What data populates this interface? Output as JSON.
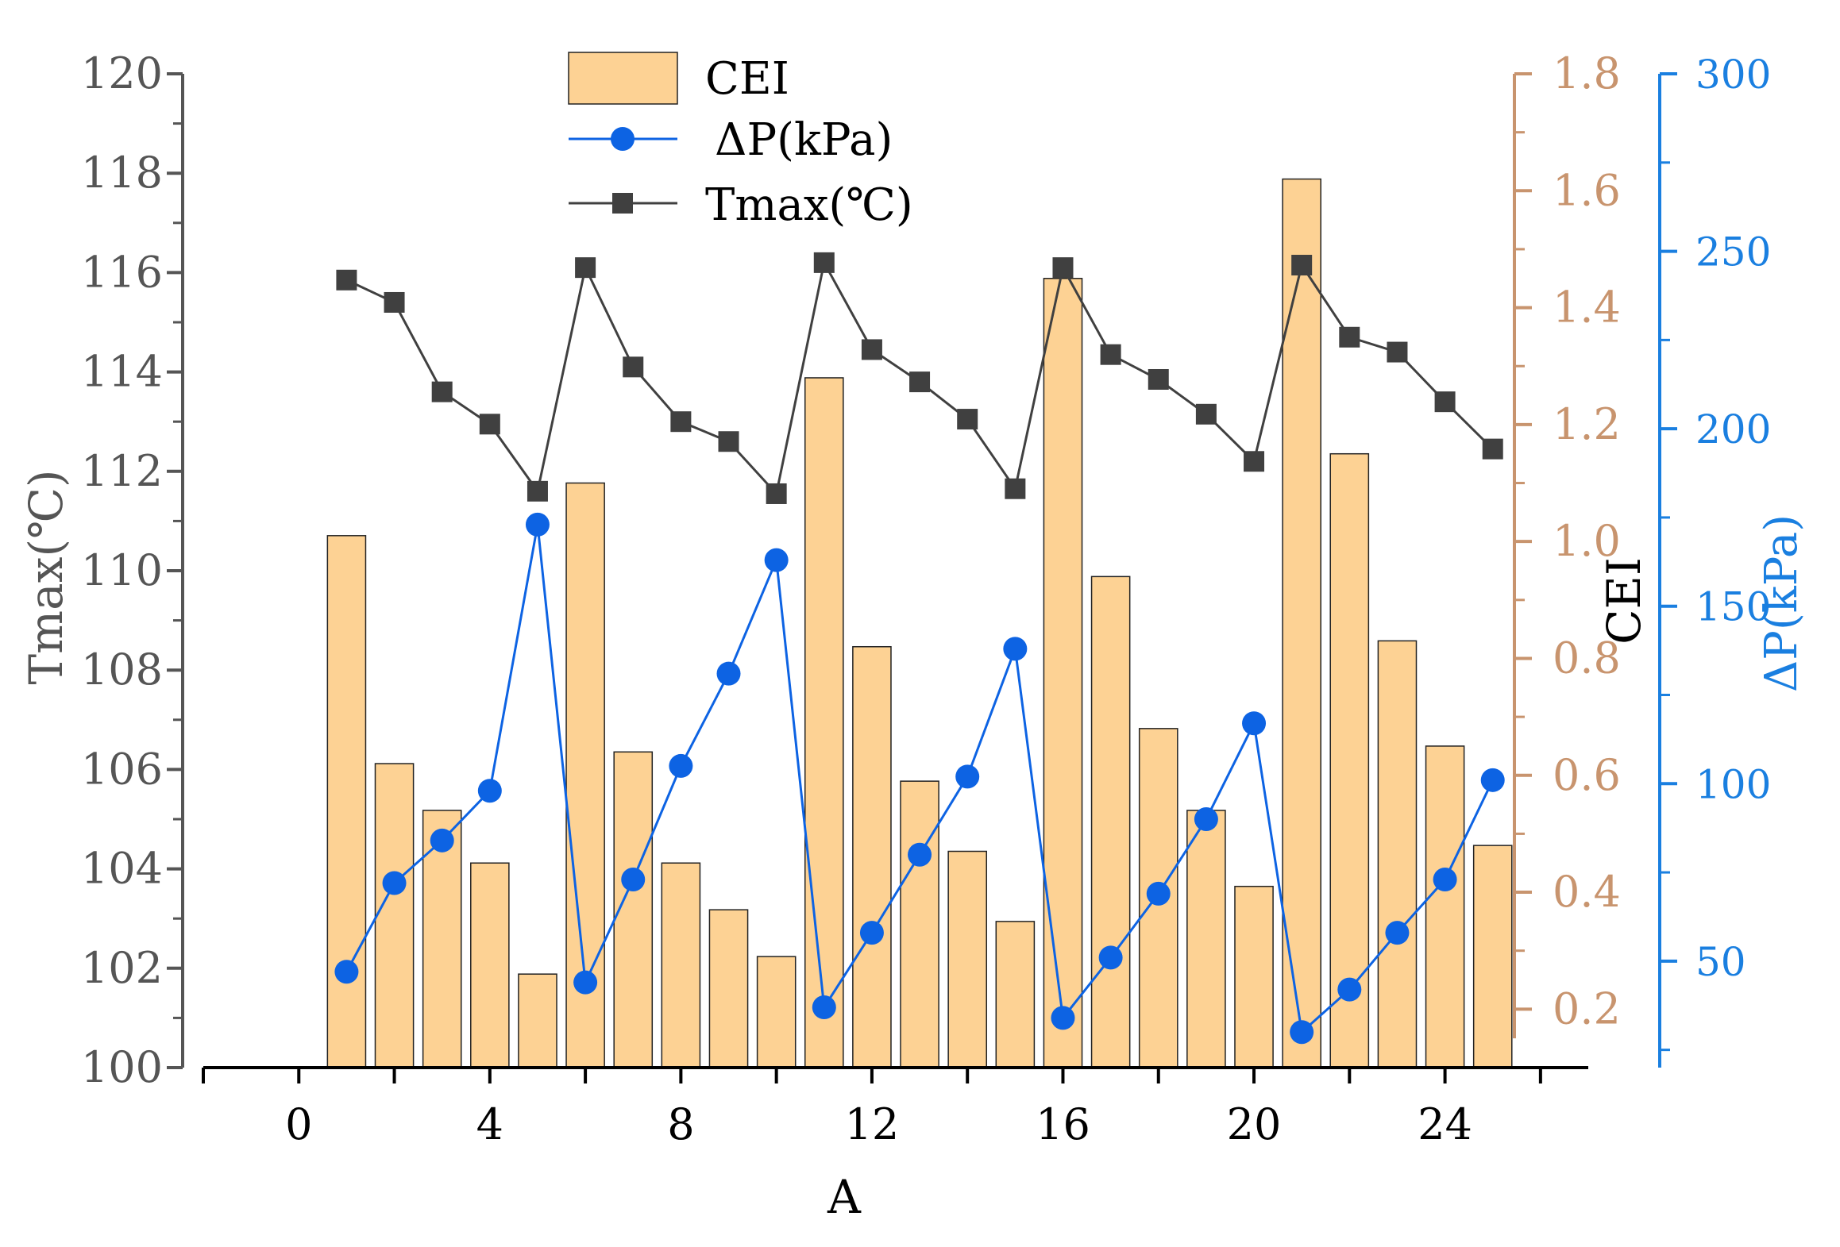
{
  "chart_data": {
    "type": "bar+line",
    "title": "",
    "xlabel": "A",
    "xlim": [
      -2,
      27
    ],
    "xticks": [
      0,
      4,
      8,
      12,
      16,
      20,
      24
    ],
    "axes": {
      "left": {
        "label": "Tmax(℃)",
        "ylim": [
          100,
          120
        ],
        "ticks": [
          100,
          102,
          104,
          106,
          108,
          110,
          112,
          114,
          116,
          118,
          120
        ],
        "color": "#555555"
      },
      "right1": {
        "label": "CEI",
        "ylim": [
          0.1,
          1.8
        ],
        "ticks": [
          0.2,
          0.4,
          0.6,
          0.8,
          1.0,
          1.2,
          1.4,
          1.6,
          1.8
        ],
        "color": "#c8946e"
      },
      "right2": {
        "label": "ΔP(kPa)",
        "ylim": [
          20,
          300
        ],
        "ticks": [
          50,
          100,
          150,
          200,
          250,
          300
        ],
        "color": "#1a7fe0"
      }
    },
    "x": [
      1,
      2,
      3,
      4,
      5,
      6,
      7,
      8,
      9,
      10,
      11,
      12,
      13,
      14,
      15,
      16,
      17,
      18,
      19,
      20,
      21,
      22,
      23,
      24,
      25
    ],
    "series": [
      {
        "name": "CEI",
        "type": "bar",
        "axis": "right1",
        "color": "#fdd294",
        "values": [
          1.01,
          0.62,
          0.54,
          0.45,
          0.26,
          1.1,
          0.64,
          0.45,
          0.37,
          0.29,
          1.28,
          0.82,
          0.59,
          0.47,
          0.35,
          1.45,
          0.94,
          0.68,
          0.54,
          0.41,
          1.62,
          1.15,
          0.83,
          0.65,
          0.48
        ]
      },
      {
        "name": "ΔP(kPa)",
        "type": "line",
        "marker": "circle",
        "axis": "right2",
        "color": "#0d63e3",
        "values": [
          47,
          72,
          84,
          98,
          173,
          44,
          73,
          105,
          131,
          163,
          37,
          58,
          80,
          102,
          138,
          34,
          51,
          69,
          90,
          117,
          30,
          42,
          58,
          73,
          101
        ]
      },
      {
        "name": "Tmax(℃)",
        "type": "line",
        "marker": "square",
        "axis": "left",
        "color": "#404040",
        "values": [
          115.85,
          115.4,
          113.6,
          112.95,
          111.6,
          116.1,
          114.1,
          113.0,
          112.6,
          111.55,
          116.2,
          114.45,
          113.8,
          113.05,
          111.65,
          116.1,
          114.35,
          113.85,
          113.15,
          112.2,
          116.15,
          114.7,
          114.4,
          113.4,
          112.45
        ]
      }
    ],
    "legend": {
      "position": "top-center",
      "entries": [
        "CEI",
        "ΔP(kPa)",
        "Tmax(℃)"
      ]
    }
  }
}
